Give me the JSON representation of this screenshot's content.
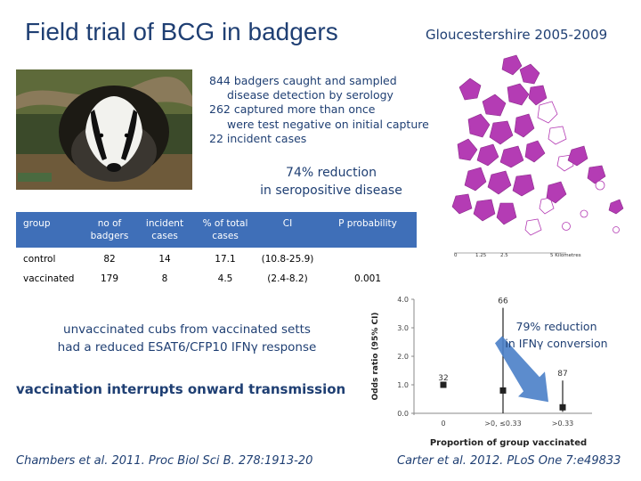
{
  "slide": {
    "title": "Field trial of BCG in badgers",
    "region": "Gloucestershire 2005-2009",
    "facts": [
      "844 badgers caught and sampled",
      "disease detection by serology",
      "262 captured more than once",
      "were test negative on initial capture",
      "22 incident cases"
    ],
    "reduction": [
      "74% reduction",
      "in seropositive disease"
    ],
    "cubs_text": [
      "unvaccinated cubs from vaccinated setts",
      "had a reduced ESAT6/CFP10 IFNγ response"
    ],
    "interrupt_text": "vaccination interrupts onward transmission",
    "conversion_text": [
      "79% reduction",
      "in IFNγ conversion"
    ],
    "reference_left": "Chambers et al. 2011. Proc Biol Sci B. 278:1913-20",
    "reference_right": "Carter et al. 2012. PLoS One 7:e49833"
  },
  "map": {
    "scale_labels": [
      "0",
      "1.25",
      "2.5",
      "5 Kilometres"
    ],
    "colors": {
      "fill": "#b43cb4",
      "outline": "#8a2a8a"
    }
  },
  "table": {
    "headers": [
      "group",
      "no of badgers",
      "incident cases",
      "% of total cases",
      "CI",
      "P probability"
    ],
    "rows": [
      [
        "control",
        "82",
        "14",
        "17.1",
        "(10.8-25.9)",
        ""
      ],
      [
        "vaccinated",
        "179",
        "8",
        "4.5",
        "(2.4-8.2)",
        "0.001"
      ]
    ],
    "colors": {
      "header_bg": "#3f6fb8",
      "header_text": "#ffffff"
    }
  },
  "chart_data": {
    "type": "scatter",
    "ylabel": "Odds ratio (95% CI)",
    "xlabel": "Proportion of group vaccinated",
    "y_ticks": [
      "0.0",
      "1.0",
      "2.0",
      "3.0",
      "4.0"
    ],
    "ylim": [
      0,
      4
    ],
    "categories": [
      "0",
      ">0, ≤0.33",
      ">0.33"
    ],
    "points": [
      {
        "category": "0",
        "value": 1.0,
        "label": "32",
        "lower": null,
        "upper": null
      },
      {
        "category": ">0, ≤0.33",
        "value": 0.8,
        "label": "66",
        "lower": 0.0,
        "upper": 3.7
      },
      {
        "category": ">0.33",
        "value": 0.21,
        "label": "87",
        "lower": 0.05,
        "upper": 1.15
      }
    ]
  },
  "colors": {
    "text_blue": "#1f3f73",
    "arrow": "#4a80c8"
  }
}
